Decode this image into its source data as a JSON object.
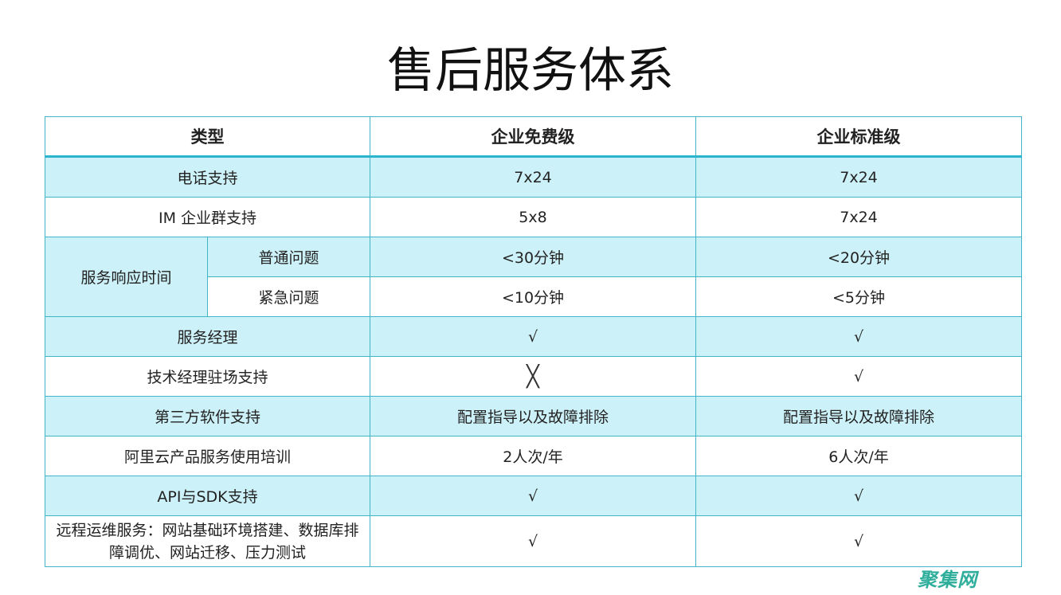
{
  "title": "售后服务体系",
  "headers": [
    "类型",
    "企业免费级",
    "企业标准级"
  ],
  "rows": [
    {
      "type": "电话支持",
      "free": "7x24",
      "standard": "7x24"
    },
    {
      "type": "IM 企业群支持",
      "free": "5x8",
      "standard": "7x24"
    },
    {
      "group": "服务响应时间",
      "type": "普通问题",
      "free": "<30分钟",
      "standard": "<20分钟"
    },
    {
      "type": "紧急问题",
      "free": "<10分钟",
      "standard": "<5分钟"
    },
    {
      "type": "服务经理",
      "free": "√",
      "standard": "√"
    },
    {
      "type": "技术经理驻场支持",
      "free": "╳",
      "standard": "√"
    },
    {
      "type": "第三方软件支持",
      "free": "配置指导以及故障排除",
      "standard": "配置指导以及故障排除"
    },
    {
      "type": "阿里云产品服务使用培训",
      "free": "2人次/年",
      "standard": "6人次/年"
    },
    {
      "type": "API与SDK支持",
      "free": "√",
      "standard": "√"
    },
    {
      "type": "远程运维服务：网站基础环境搭建、数据库排障调优、网站迁移、压力测试",
      "free": "√",
      "standard": "√"
    }
  ],
  "watermark": "聚集网",
  "colors": {
    "border": "#3fb5c6",
    "stripe": "#cdf1f8",
    "watermark": "#2fae9c"
  }
}
